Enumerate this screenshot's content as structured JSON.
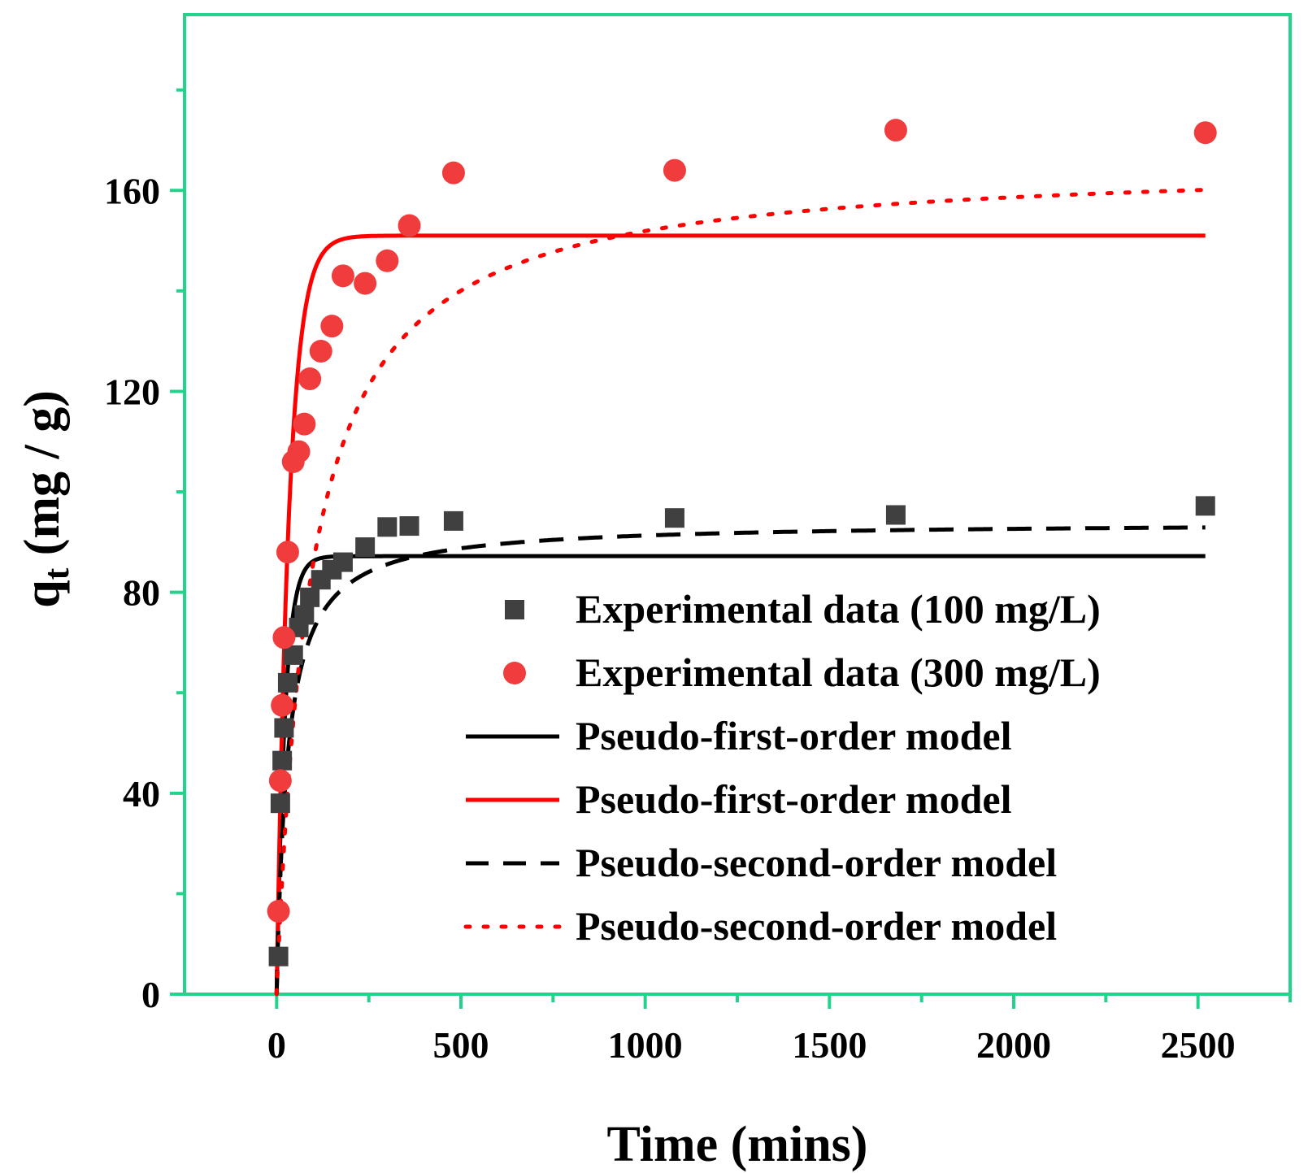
{
  "chart_data": {
    "type": "scatter",
    "title": "",
    "xlabel": "Time (mins)",
    "ylabel": "q",
    "ylabel_sub": "t",
    "ylabel_unit": " (mg / g)",
    "xlim": [
      -250,
      2750
    ],
    "ylim": [
      0,
      195
    ],
    "xticks": [
      0,
      500,
      1000,
      1500,
      2000,
      2500
    ],
    "yticks": [
      0,
      40,
      80,
      120,
      160
    ],
    "xtick_labels": [
      "0",
      "500",
      "1000",
      "1500",
      "2000",
      "2500"
    ],
    "ytick_labels": [
      "0",
      "40",
      "80",
      "120",
      "160"
    ],
    "grid": false,
    "legend_position": "bottom-right",
    "series": [
      {
        "name": "Experimental data (100 mg/L)",
        "kind": "scatter",
        "marker": "square",
        "color": "#404040",
        "points": [
          [
            5,
            7.5
          ],
          [
            10,
            38
          ],
          [
            15,
            46.5
          ],
          [
            20,
            53
          ],
          [
            30,
            62
          ],
          [
            45,
            67.5
          ],
          [
            60,
            73
          ],
          [
            75,
            75.5
          ],
          [
            90,
            79
          ],
          [
            120,
            82.5
          ],
          [
            150,
            84.5
          ],
          [
            180,
            86
          ],
          [
            240,
            89
          ],
          [
            300,
            93
          ],
          [
            360,
            93.2
          ],
          [
            480,
            94.2
          ],
          [
            1080,
            94.8
          ],
          [
            1680,
            95.4
          ],
          [
            2520,
            97.2
          ]
        ]
      },
      {
        "name": "Experimental data (300 mg/L)",
        "kind": "scatter",
        "marker": "circle",
        "color": "#f03c3c",
        "points": [
          [
            5,
            16.5
          ],
          [
            10,
            42.5
          ],
          [
            15,
            57.5
          ],
          [
            20,
            71
          ],
          [
            30,
            88
          ],
          [
            45,
            106
          ],
          [
            60,
            108
          ],
          [
            75,
            113.5
          ],
          [
            90,
            122.5
          ],
          [
            120,
            128
          ],
          [
            150,
            133
          ],
          [
            180,
            143
          ],
          [
            240,
            141.5
          ],
          [
            300,
            146
          ],
          [
            360,
            153
          ],
          [
            480,
            163.5
          ],
          [
            1080,
            164
          ],
          [
            1680,
            172
          ],
          [
            2520,
            171.5
          ]
        ]
      },
      {
        "name": "Pseudo-first-order model",
        "kind": "line",
        "model": "pfo",
        "qe": 87.2,
        "k": 0.045,
        "color": "#000000",
        "dash": "solid"
      },
      {
        "name": "Pseudo-first-order model",
        "kind": "line",
        "model": "pfo",
        "qe": 151,
        "k": 0.03,
        "color": "#ff0000",
        "dash": "solid"
      },
      {
        "name": "Pseudo-second-order model",
        "kind": "line",
        "model": "pso",
        "qe": 94,
        "k": 0.00036,
        "color": "#000000",
        "dash": "dashed"
      },
      {
        "name": "Pseudo-second-order model",
        "kind": "line",
        "model": "pso",
        "qe": 166,
        "k": 6.5e-05,
        "color": "#ff0000",
        "dash": "dotted"
      }
    ]
  },
  "colors": {
    "frame": "#22d38c",
    "text": "#000000"
  }
}
